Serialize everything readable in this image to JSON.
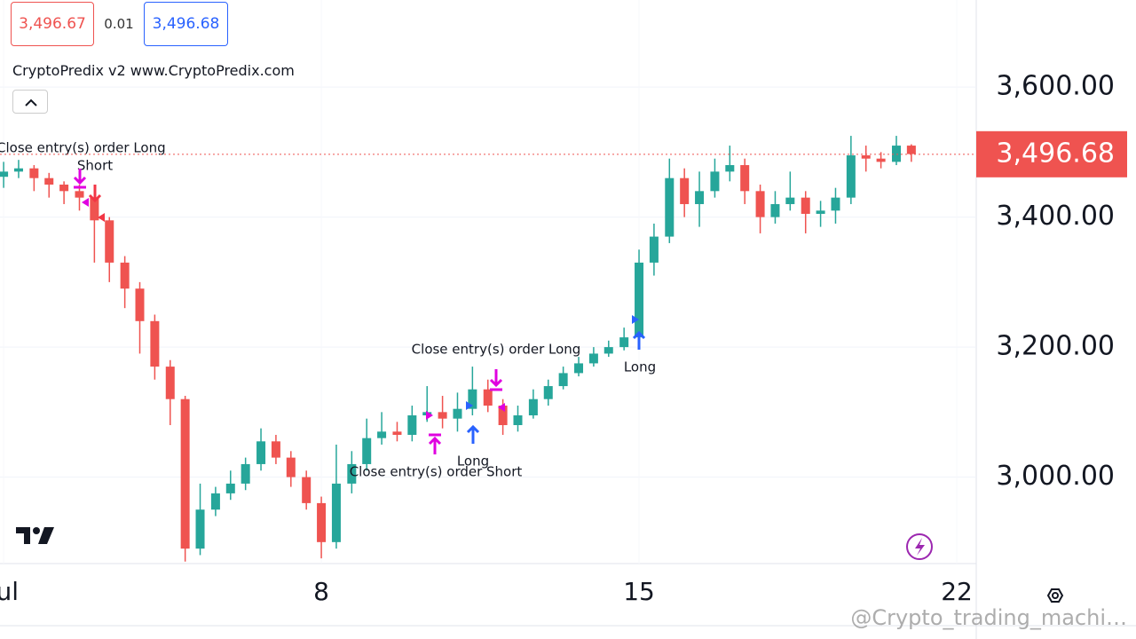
{
  "chart_data": {
    "type": "candlestick",
    "title": "CryptoPredix v2 www.CryptoPredix.com",
    "quote": {
      "bid": "3,496.67",
      "spread": "0.01",
      "ask": "3,496.68"
    },
    "x": [
      1.0,
      1.33,
      1.67,
      2.0,
      2.33,
      2.67,
      3.0,
      3.33,
      3.67,
      4.0,
      4.33,
      4.67,
      5.0,
      5.33,
      5.67,
      6.0,
      6.33,
      6.67,
      7.0,
      7.33,
      7.67,
      8.0,
      8.33,
      8.67,
      9.0,
      9.33,
      9.67,
      10.0,
      10.33,
      10.67,
      11.0,
      11.33,
      11.67,
      12.0,
      12.33,
      12.67,
      13.0,
      13.33,
      13.67,
      14.0,
      14.33,
      14.67,
      15.0,
      15.33,
      15.67,
      16.0,
      16.33,
      16.67,
      17.0,
      17.33,
      17.67,
      18.0,
      18.33,
      18.67,
      19.0,
      19.33,
      19.67,
      20.0,
      20.33,
      20.67,
      21.0
    ],
    "open": [
      3462,
      3470,
      3475,
      3460,
      3450,
      3440,
      3430,
      3395,
      3330,
      3290,
      3240,
      3170,
      3120,
      2890,
      2950,
      2975,
      2990,
      3020,
      3055,
      3030,
      3000,
      2960,
      2900,
      2990,
      3020,
      3060,
      3070,
      3065,
      3095,
      3100,
      3090,
      3105,
      3135,
      3110,
      3080,
      3095,
      3120,
      3140,
      3160,
      3175,
      3190,
      3200,
      3215,
      3330,
      3370,
      3460,
      3420,
      3440,
      3470,
      3480,
      3440,
      3400,
      3420,
      3430,
      3405,
      3410,
      3430,
      3495,
      3490,
      3485,
      3510
    ],
    "high": [
      3485,
      3488,
      3480,
      3468,
      3455,
      3450,
      3440,
      3400,
      3340,
      3300,
      3250,
      3180,
      3125,
      2990,
      2985,
      3010,
      3030,
      3075,
      3065,
      3040,
      3010,
      2970,
      3050,
      3040,
      3090,
      3100,
      3085,
      3110,
      3140,
      3125,
      3130,
      3170,
      3150,
      3120,
      3110,
      3135,
      3150,
      3170,
      3185,
      3200,
      3210,
      3230,
      3350,
      3390,
      3490,
      3475,
      3470,
      3490,
      3510,
      3490,
      3450,
      3440,
      3470,
      3440,
      3425,
      3445,
      3525,
      3510,
      3500,
      3525,
      3512
    ],
    "low": [
      3445,
      3460,
      3440,
      3430,
      3420,
      3410,
      3330,
      3300,
      3260,
      3190,
      3150,
      3080,
      2870,
      2880,
      2940,
      2965,
      2980,
      3010,
      3020,
      2985,
      2950,
      2875,
      2890,
      2975,
      3010,
      3050,
      3055,
      3055,
      3085,
      3075,
      3070,
      3095,
      3100,
      3065,
      3070,
      3090,
      3110,
      3135,
      3155,
      3170,
      3185,
      3195,
      3210,
      3310,
      3360,
      3400,
      3385,
      3430,
      3455,
      3420,
      3375,
      3390,
      3410,
      3375,
      3385,
      3390,
      3420,
      3470,
      3475,
      3480,
      3485
    ],
    "close": [
      3470,
      3475,
      3460,
      3450,
      3440,
      3430,
      3395,
      3330,
      3290,
      3240,
      3170,
      3120,
      2890,
      2950,
      2975,
      2990,
      3020,
      3055,
      3030,
      3000,
      2960,
      2900,
      2990,
      3020,
      3060,
      3070,
      3065,
      3095,
      3100,
      3090,
      3105,
      3135,
      3110,
      3080,
      3095,
      3120,
      3140,
      3160,
      3175,
      3190,
      3200,
      3215,
      3330,
      3370,
      3460,
      3420,
      3440,
      3470,
      3480,
      3440,
      3400,
      3420,
      3430,
      3405,
      3410,
      3430,
      3495,
      3490,
      3485,
      3510,
      3497
    ],
    "up_color": "#26a69a",
    "down_color": "#ef5350",
    "last_price": {
      "value": 3496.68,
      "label": "3,496.68"
    },
    "ylim": [
      2867,
      3734
    ],
    "yticks": [
      {
        "value": 3000,
        "label": "3,000.00"
      },
      {
        "value": 3200,
        "label": "3,200.00"
      },
      {
        "value": 3400,
        "label": "3,400.00"
      },
      {
        "value": 3600,
        "label": "3,600.00"
      }
    ],
    "xlim": [
      0.92,
      22.43
    ],
    "xticks": [
      {
        "value": 1,
        "label": "Jul"
      },
      8,
      15,
      22
    ],
    "grid": true,
    "annotations": [
      "Close entry(s) order Long",
      "Short",
      "Close entry(s) order Long",
      "Long",
      "Close entry(s) order Short",
      "Long"
    ],
    "watermark": "@Crypto_trading_machi…"
  }
}
